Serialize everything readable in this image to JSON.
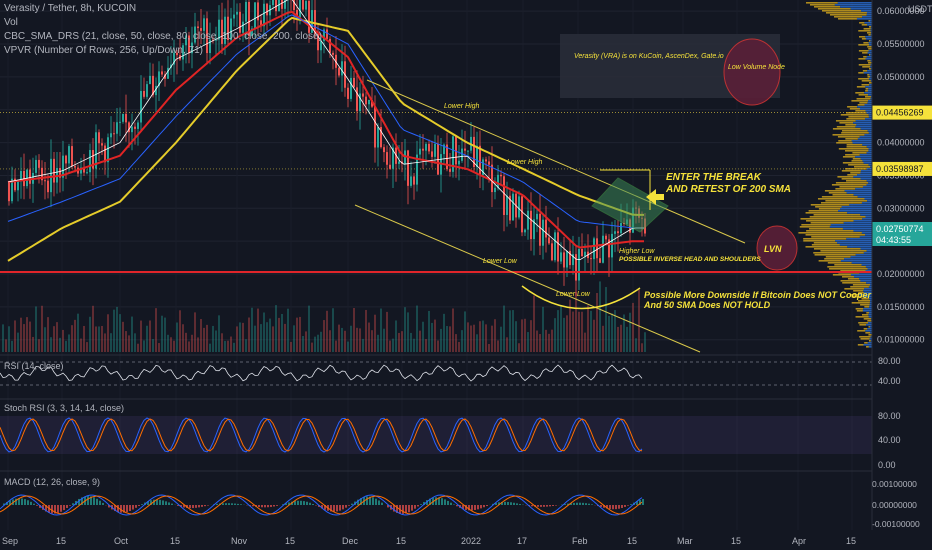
{
  "header": {
    "title": "Verasity / Tether, 8h, KUCOIN",
    "vol_label": "Vol",
    "sma_label": "CBC_SMA_DRS (21, close, 50, close, 80, close, 100, close, 200, close)",
    "vpvr_label": "VPVR (Number Of Rows, 256, Up/Down, 71)"
  },
  "price_axis": {
    "currency": "USDT",
    "ticks": [
      "0.06000000",
      "0.05500000",
      "0.05000000",
      "0.04500000",
      "0.04000000",
      "0.03500000",
      "0.03000000",
      "0.02500000",
      "0.02000000",
      "0.01500000",
      "0.01000000"
    ],
    "tick_values": [
      0.06,
      0.055,
      0.05,
      0.045,
      0.04,
      0.035,
      0.03,
      0.025,
      0.02,
      0.015,
      0.01
    ],
    "current_price": "0.02750774",
    "countdown": "04:43:55",
    "level_labels": [
      {
        "text": "0.04456269",
        "value": 0.04456269
      },
      {
        "text": "0.03598987",
        "value": 0.03598987
      }
    ]
  },
  "rsi": {
    "label": "RSI (14, close)",
    "ticks": [
      "80.00",
      "40.00"
    ],
    "tick_values": [
      80,
      40
    ]
  },
  "stoch": {
    "label": "Stoch RSI (3, 3, 14, 14, close)",
    "ticks": [
      "80.00",
      "40.00",
      "0.00"
    ],
    "tick_values": [
      80,
      40,
      0
    ]
  },
  "macd": {
    "label": "MACD (12, 26, close, 9)",
    "ticks": [
      "0.00100000",
      "0.00000000",
      "-0.00100000"
    ],
    "tick_values": [
      0.001,
      0,
      -0.001
    ]
  },
  "time_axis": [
    "Sep",
    "15",
    "Oct",
    "15",
    "Nov",
    "15",
    "Dec",
    "15",
    "2022",
    "17",
    "Feb",
    "15",
    "Mar",
    "15",
    "Apr",
    "15"
  ],
  "annotations": {
    "info_box": "Verasity (VRA) is on KuCoin, AscenDex, Gate.io",
    "low_volume_node": "Low Volume Node",
    "lower_high_1": "Lower High",
    "lower_high_2": "Lower High",
    "lower_low_1": "Lower Low",
    "lower_low_2": "Lower Low",
    "enter_break_1": "ENTER THE BREAK",
    "enter_break_2": "AND RETEST OF 200 SMA",
    "higher_low": "Higher Low",
    "inverse_hs": "POSSIBLE INVERSE HEAD AND SHOULDERS",
    "lvn": "LVN",
    "downside_1": "Possible More Downside If Bitcoin Does NOT Cooper",
    "downside_2": "And  50 SMA Does NOT HOLD"
  },
  "colors": {
    "background": "#131722",
    "candle_up": "#26a69a",
    "candle_down": "#ef5350",
    "sma_200": "#e5cc2a",
    "sma_50": "#e02424",
    "sma_21": "#ffffff",
    "sma_100": "#2962ff",
    "annotation": "#f5e23b",
    "support": "#e0252a",
    "vpvr_up": "#2a6fd6",
    "vpvr_down": "#e2b21c"
  },
  "chart_data": {
    "type": "line",
    "title": "Verasity / Tether, 8h, KUCOIN",
    "x": [
      "Sep",
      "15",
      "Oct",
      "15",
      "Nov",
      "15",
      "Dec",
      "15",
      "2022",
      "17",
      "Feb",
      "15"
    ],
    "series": [
      {
        "name": "Price",
        "values": [
          0.034,
          0.036,
          0.041,
          0.055,
          0.058,
          0.063,
          0.048,
          0.036,
          0.039,
          0.028,
          0.021,
          0.028
        ]
      },
      {
        "name": "SMA 200",
        "values": [
          0.022,
          0.027,
          0.031,
          0.04,
          0.051,
          0.059,
          0.057,
          0.046,
          0.04,
          0.036,
          0.032,
          0.029
        ]
      },
      {
        "name": "SMA 50",
        "values": [
          0.034,
          0.035,
          0.038,
          0.048,
          0.056,
          0.06,
          0.053,
          0.038,
          0.036,
          0.032,
          0.024,
          0.025
        ]
      }
    ],
    "ylim": [
      0.007,
      0.062
    ],
    "support_level": 0.0203,
    "grid": true
  }
}
